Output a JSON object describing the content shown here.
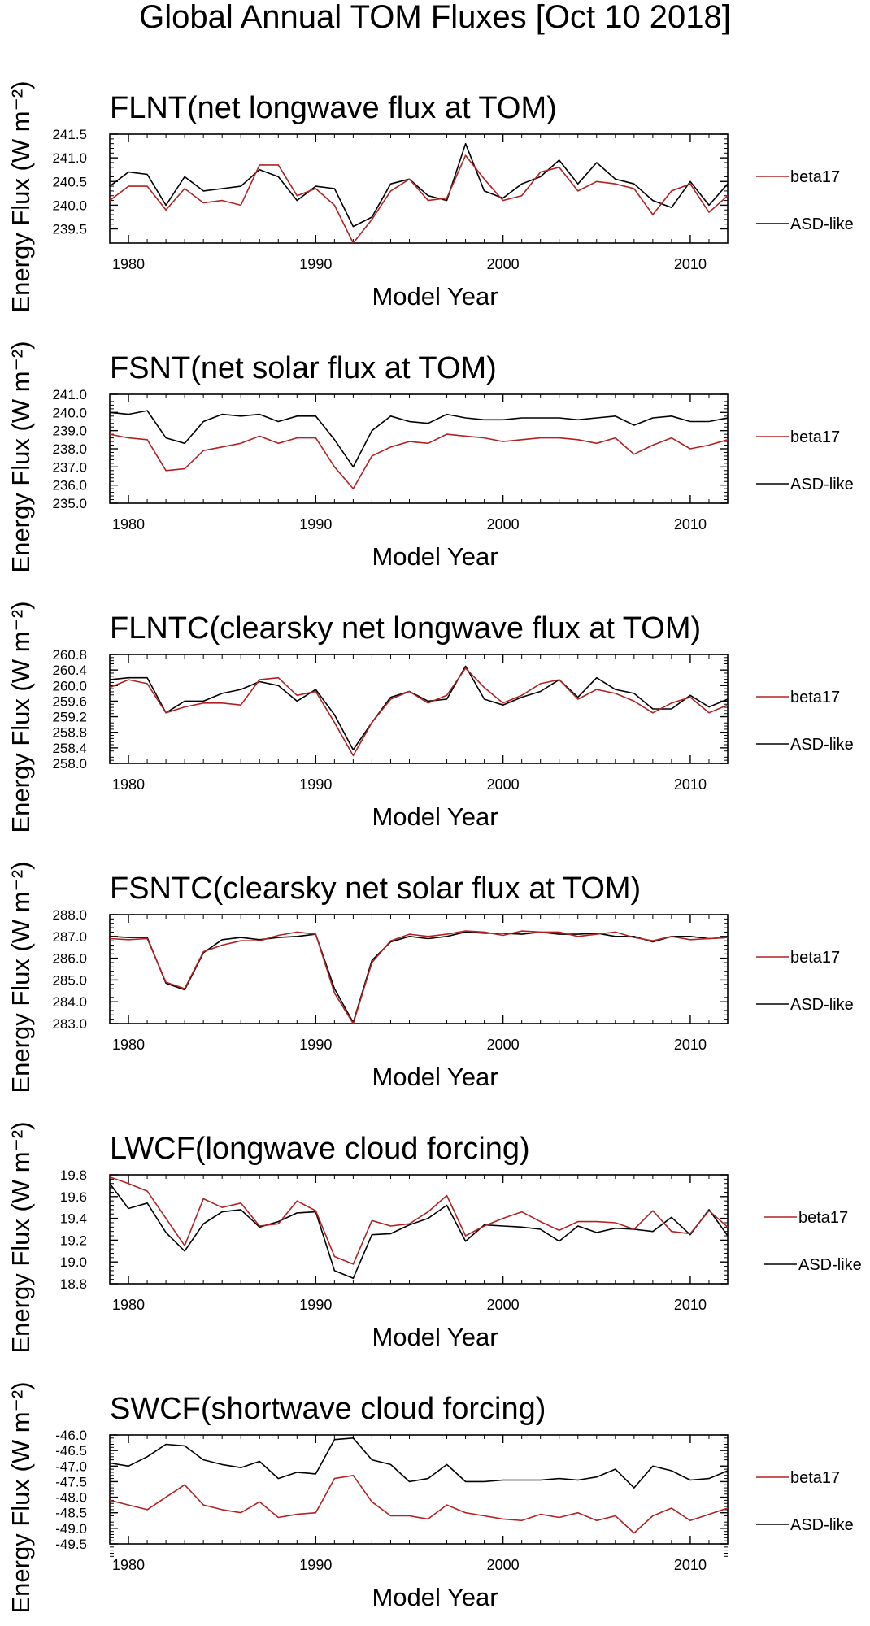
{
  "figure_title": "Global Annual TOM Fluxes [Oct 10 2018]",
  "colors": {
    "beta17": "#b22222",
    "asd": "#000000"
  },
  "chart_data": [
    {
      "type": "line",
      "title": "FLNT(net longwave flux at TOM)",
      "xlabel": "Model Year",
      "ylabel": "Energy Flux (W m⁻²)",
      "xlim": [
        1979,
        2012
      ],
      "ylim": [
        239.2,
        241.5
      ],
      "x_ticks": [
        "1980",
        "1990",
        "2000",
        "2010"
      ],
      "y_ticks": [
        "239.5",
        "240.0",
        "240.5",
        "241.0",
        "241.5"
      ],
      "x": [
        1979,
        1980,
        1981,
        1982,
        1983,
        1984,
        1985,
        1986,
        1987,
        1988,
        1989,
        1990,
        1991,
        1992,
        1993,
        1994,
        1995,
        1996,
        1997,
        1998,
        1999,
        2000,
        2001,
        2002,
        2003,
        2004,
        2005,
        2006,
        2007,
        2008,
        2009,
        2010,
        2011,
        2012
      ],
      "series": [
        {
          "name": "beta17",
          "values": [
            240.1,
            240.4,
            240.4,
            239.9,
            240.35,
            240.05,
            240.1,
            240.0,
            240.85,
            240.85,
            240.2,
            240.35,
            240.0,
            239.2,
            239.7,
            240.3,
            240.55,
            240.1,
            240.15,
            241.05,
            240.55,
            240.1,
            240.2,
            240.7,
            240.8,
            240.3,
            240.5,
            240.45,
            240.35,
            239.8,
            240.3,
            240.45,
            239.85,
            240.2
          ]
        },
        {
          "name": "ASD-like",
          "values": [
            240.4,
            240.7,
            240.65,
            240.0,
            240.6,
            240.3,
            240.35,
            240.4,
            240.75,
            240.6,
            240.1,
            240.4,
            240.35,
            239.55,
            239.75,
            240.45,
            240.55,
            240.2,
            240.1,
            241.3,
            240.3,
            240.15,
            240.45,
            240.6,
            240.95,
            240.45,
            240.9,
            240.55,
            240.45,
            240.1,
            239.95,
            240.5,
            240.0,
            240.45
          ]
        }
      ]
    },
    {
      "type": "line",
      "title": "FSNT(net solar flux at TOM)",
      "xlabel": "Model Year",
      "ylabel": "Energy Flux (W m⁻²)",
      "xlim": [
        1979,
        2012
      ],
      "ylim": [
        235.0,
        241.0
      ],
      "x_ticks": [
        "1980",
        "1990",
        "2000",
        "2010"
      ],
      "y_ticks": [
        "235.0",
        "236.0",
        "237.0",
        "238.0",
        "239.0",
        "240.0",
        "241.0"
      ],
      "x": [
        1979,
        1980,
        1981,
        1982,
        1983,
        1984,
        1985,
        1986,
        1987,
        1988,
        1989,
        1990,
        1991,
        1992,
        1993,
        1994,
        1995,
        1996,
        1997,
        1998,
        1999,
        2000,
        2001,
        2002,
        2003,
        2004,
        2005,
        2006,
        2007,
        2008,
        2009,
        2010,
        2011,
        2012
      ],
      "series": [
        {
          "name": "beta17",
          "values": [
            238.8,
            238.6,
            238.5,
            236.8,
            236.9,
            237.9,
            238.1,
            238.3,
            238.7,
            238.3,
            238.6,
            238.6,
            237.0,
            235.8,
            237.6,
            238.1,
            238.4,
            238.3,
            238.8,
            238.7,
            238.6,
            238.4,
            238.5,
            238.6,
            238.6,
            238.5,
            238.3,
            238.6,
            237.7,
            238.2,
            238.6,
            238.0,
            238.2,
            238.5
          ]
        },
        {
          "name": "ASD-like",
          "values": [
            240.0,
            239.9,
            240.1,
            238.6,
            238.3,
            239.5,
            239.9,
            239.8,
            239.9,
            239.5,
            239.8,
            239.8,
            238.5,
            237.0,
            239.0,
            239.8,
            239.5,
            239.4,
            239.9,
            239.7,
            239.6,
            239.6,
            239.7,
            239.7,
            239.7,
            239.6,
            239.7,
            239.8,
            239.3,
            239.7,
            239.8,
            239.5,
            239.5,
            239.7
          ]
        }
      ]
    },
    {
      "type": "line",
      "title": "FLNTC(clearsky net longwave flux at TOM)",
      "xlabel": "Model Year",
      "ylabel": "Energy Flux (W m⁻²)",
      "xlim": [
        1979,
        2012
      ],
      "ylim": [
        258.0,
        260.8
      ],
      "x_ticks": [
        "1980",
        "1990",
        "2000",
        "2010"
      ],
      "y_ticks": [
        "258.0",
        "258.4",
        "258.8",
        "259.2",
        "259.6",
        "260.0",
        "260.4",
        "260.8"
      ],
      "x": [
        1979,
        1980,
        1981,
        1982,
        1983,
        1984,
        1985,
        1986,
        1987,
        1988,
        1989,
        1990,
        1991,
        1992,
        1993,
        1994,
        1995,
        1996,
        1997,
        1998,
        1999,
        2000,
        2001,
        2002,
        2003,
        2004,
        2005,
        2006,
        2007,
        2008,
        2009,
        2010,
        2011,
        2012
      ],
      "series": [
        {
          "name": "beta17",
          "values": [
            259.95,
            260.15,
            260.05,
            259.3,
            259.45,
            259.55,
            259.55,
            259.5,
            260.15,
            260.2,
            259.75,
            259.85,
            259.05,
            258.2,
            259.05,
            259.65,
            259.85,
            259.55,
            259.75,
            260.45,
            259.95,
            259.55,
            259.75,
            260.05,
            260.15,
            259.65,
            259.9,
            259.8,
            259.6,
            259.3,
            259.55,
            259.7,
            259.3,
            259.5
          ]
        },
        {
          "name": "ASD-like",
          "values": [
            260.15,
            260.2,
            260.2,
            259.3,
            259.6,
            259.6,
            259.8,
            259.9,
            260.1,
            260.0,
            259.6,
            259.9,
            259.25,
            258.35,
            259.05,
            259.7,
            259.85,
            259.6,
            259.65,
            260.5,
            259.65,
            259.5,
            259.7,
            259.85,
            260.15,
            259.7,
            260.2,
            259.9,
            259.8,
            259.4,
            259.4,
            259.75,
            259.45,
            259.65
          ]
        }
      ]
    },
    {
      "type": "line",
      "title": "FSNTC(clearsky net solar flux at TOM)",
      "xlabel": "Model Year",
      "ylabel": "Energy Flux (W m⁻²)",
      "xlim": [
        1979,
        2012
      ],
      "ylim": [
        283.0,
        288.0
      ],
      "x_ticks": [
        "1980",
        "1990",
        "2000",
        "2010"
      ],
      "y_ticks": [
        "283.0",
        "284.0",
        "285.0",
        "286.0",
        "287.0",
        "288.0"
      ],
      "x": [
        1979,
        1980,
        1981,
        1982,
        1983,
        1984,
        1985,
        1986,
        1987,
        1988,
        1989,
        1990,
        1991,
        1992,
        1993,
        1994,
        1995,
        1996,
        1997,
        1998,
        1999,
        2000,
        2001,
        2002,
        2003,
        2004,
        2005,
        2006,
        2007,
        2008,
        2009,
        2010,
        2011,
        2012
      ],
      "series": [
        {
          "name": "beta17",
          "values": [
            286.9,
            286.85,
            286.9,
            284.9,
            284.6,
            286.3,
            286.6,
            286.8,
            286.8,
            287.05,
            287.2,
            287.1,
            284.4,
            283.0,
            285.8,
            286.8,
            287.1,
            287.0,
            287.1,
            287.25,
            287.2,
            287.05,
            287.25,
            287.2,
            287.2,
            287.0,
            287.1,
            287.2,
            286.95,
            286.8,
            287.0,
            286.85,
            286.9,
            286.95
          ]
        },
        {
          "name": "ASD-like",
          "values": [
            287.0,
            286.95,
            286.95,
            284.85,
            284.55,
            286.25,
            286.85,
            286.95,
            286.85,
            286.95,
            287.0,
            287.1,
            284.6,
            283.05,
            285.9,
            286.75,
            287.0,
            286.9,
            287.0,
            287.2,
            287.15,
            287.15,
            287.1,
            287.2,
            287.1,
            287.1,
            287.15,
            287.0,
            287.0,
            286.75,
            287.0,
            287.0,
            286.9,
            286.95
          ]
        }
      ]
    },
    {
      "type": "line",
      "title": "LWCF(longwave cloud forcing)",
      "xlabel": "Model Year",
      "ylabel": "Energy Flux (W m⁻²)",
      "xlim": [
        1979,
        2012
      ],
      "ylim": [
        18.8,
        19.8
      ],
      "x_ticks": [
        "1980",
        "1990",
        "2000",
        "2010"
      ],
      "y_ticks": [
        "18.8",
        "19.0",
        "19.2",
        "19.4",
        "19.6",
        "19.8"
      ],
      "x": [
        1979,
        1980,
        1981,
        1982,
        1983,
        1984,
        1985,
        1986,
        1987,
        1988,
        1989,
        1990,
        1991,
        1992,
        1993,
        1994,
        1995,
        1996,
        1997,
        1998,
        1999,
        2000,
        2001,
        2002,
        2003,
        2004,
        2005,
        2006,
        2007,
        2008,
        2009,
        2010,
        2011,
        2012
      ],
      "series": [
        {
          "name": "beta17",
          "values": [
            19.78,
            19.72,
            19.65,
            19.4,
            19.15,
            19.58,
            19.5,
            19.54,
            19.33,
            19.35,
            19.56,
            19.47,
            19.05,
            18.98,
            19.38,
            19.33,
            19.35,
            19.46,
            19.61,
            19.24,
            19.33,
            19.4,
            19.46,
            19.37,
            19.29,
            19.37,
            19.37,
            19.36,
            19.3,
            19.47,
            19.28,
            19.26,
            19.47,
            19.32
          ]
        },
        {
          "name": "ASD-like",
          "values": [
            19.72,
            19.49,
            19.54,
            19.27,
            19.1,
            19.35,
            19.46,
            19.48,
            19.32,
            19.37,
            19.45,
            19.46,
            18.92,
            18.85,
            19.25,
            19.26,
            19.34,
            19.4,
            19.52,
            19.19,
            19.34,
            19.33,
            19.32,
            19.3,
            19.19,
            19.33,
            19.27,
            19.31,
            19.3,
            19.28,
            19.41,
            19.25,
            19.48,
            19.24
          ]
        }
      ]
    },
    {
      "type": "line",
      "title": "SWCF(shortwave cloud forcing)",
      "xlabel": "Model Year",
      "ylabel": "Energy Flux (W m⁻²)",
      "xlim": [
        1979,
        2012
      ],
      "ylim": [
        -49.5,
        -46.0
      ],
      "x_ticks": [
        "1980",
        "1990",
        "2000",
        "2010"
      ],
      "y_ticks": [
        "-46.0",
        "-46.5",
        "-47.0",
        "-47.5",
        "-48.0",
        "-48.5",
        "-49.0",
        "-49.5"
      ],
      "x": [
        1979,
        1980,
        1981,
        1982,
        1983,
        1984,
        1985,
        1986,
        1987,
        1988,
        1989,
        1990,
        1991,
        1992,
        1993,
        1994,
        1995,
        1996,
        1997,
        1998,
        1999,
        2000,
        2001,
        2002,
        2003,
        2004,
        2005,
        2006,
        2007,
        2008,
        2009,
        2010,
        2011,
        2012
      ],
      "series": [
        {
          "name": "beta17",
          "values": [
            -48.1,
            -48.25,
            -48.4,
            -48.0,
            -47.6,
            -48.25,
            -48.4,
            -48.5,
            -48.15,
            -48.65,
            -48.55,
            -48.5,
            -47.4,
            -47.3,
            -48.15,
            -48.6,
            -48.6,
            -48.7,
            -48.25,
            -48.5,
            -48.6,
            -48.7,
            -48.75,
            -48.55,
            -48.65,
            -48.5,
            -48.75,
            -48.6,
            -49.15,
            -48.6,
            -48.35,
            -48.75,
            -48.55,
            -48.35
          ]
        },
        {
          "name": "ASD-like",
          "values": [
            -46.9,
            -47.0,
            -46.7,
            -46.3,
            -46.35,
            -46.8,
            -46.95,
            -47.05,
            -46.85,
            -47.4,
            -47.2,
            -47.25,
            -46.15,
            -46.1,
            -46.8,
            -46.95,
            -47.5,
            -47.4,
            -46.95,
            -47.5,
            -47.5,
            -47.45,
            -47.45,
            -47.45,
            -47.4,
            -47.45,
            -47.35,
            -47.1,
            -47.7,
            -47.0,
            -47.15,
            -47.45,
            -47.4,
            -47.15
          ]
        }
      ]
    }
  ]
}
